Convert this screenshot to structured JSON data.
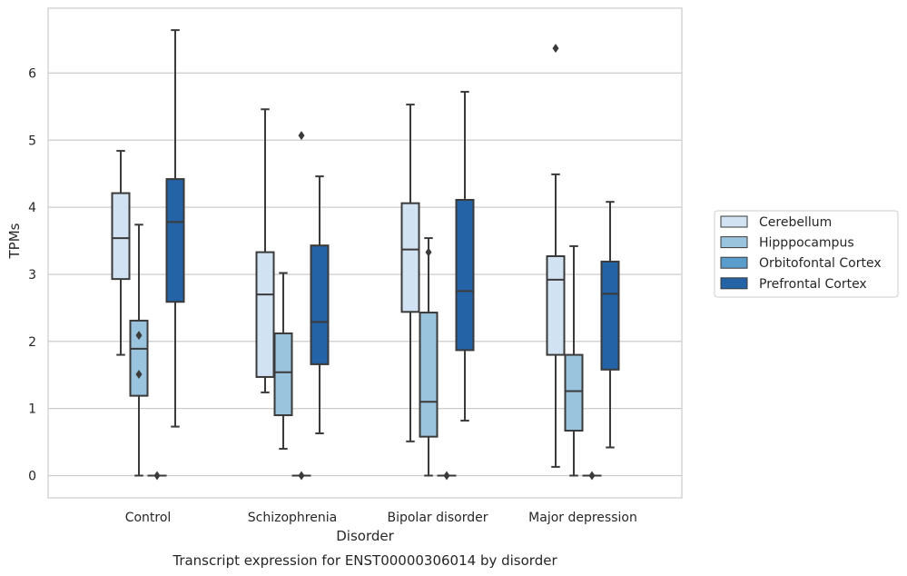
{
  "chart_data": {
    "type": "box",
    "title": "Transcript expression for ENST00000306014 by disorder",
    "xlabel": "Disorder",
    "ylabel": "TPMs",
    "ylim": [
      -0.32,
      6.99
    ],
    "yticks": [
      0,
      1,
      2,
      3,
      4,
      5,
      6
    ],
    "grid": "horizontal",
    "legend_position": "right",
    "categories": [
      "Control",
      "Schizophrenia",
      "Bipolar disorder",
      "Major depression"
    ],
    "series": [
      {
        "name": "Cerebellum",
        "color": "#d1e2f2",
        "boxes": [
          {
            "whisker_low": 1.8,
            "q1": 2.93,
            "median": 3.54,
            "q3": 4.21,
            "whisker_high": 4.84,
            "outliers": []
          },
          {
            "whisker_low": 1.24,
            "q1": 1.47,
            "median": 2.7,
            "q3": 3.33,
            "whisker_high": 5.46,
            "outliers": []
          },
          {
            "whisker_low": 0.51,
            "q1": 2.44,
            "median": 3.37,
            "q3": 4.06,
            "whisker_high": 5.53,
            "outliers": []
          },
          {
            "whisker_low": 0.13,
            "q1": 1.8,
            "median": 2.92,
            "q3": 3.27,
            "whisker_high": 4.49,
            "outliers": [
              6.37
            ]
          }
        ]
      },
      {
        "name": "Hipppocampus",
        "color": "#9ac3dd",
        "boxes": [
          {
            "whisker_low": 0.0,
            "q1": 1.19,
            "median": 1.89,
            "q3": 2.31,
            "whisker_high": 3.74,
            "outliers": [
              2.09,
              1.51
            ]
          },
          {
            "whisker_low": 0.4,
            "q1": 0.9,
            "median": 1.54,
            "q3": 2.12,
            "whisker_high": 3.02,
            "outliers": []
          },
          {
            "whisker_low": 0.0,
            "q1": 0.58,
            "median": 1.1,
            "q3": 2.43,
            "whisker_high": 3.54,
            "outliers": [
              3.33
            ]
          },
          {
            "whisker_low": 0.0,
            "q1": 0.67,
            "median": 1.26,
            "q3": 1.8,
            "whisker_high": 3.42,
            "outliers": []
          }
        ]
      },
      {
        "name": "Orbitofontal Cortex",
        "color": "#5a9ccc",
        "boxes": [
          {
            "whisker_low": 0.0,
            "q1": 0.0,
            "median": 0.0,
            "q3": 0.0,
            "whisker_high": 0.0,
            "outliers": [
              0.0
            ]
          },
          {
            "whisker_low": 0.0,
            "q1": 0.0,
            "median": 0.0,
            "q3": 0.0,
            "whisker_high": 0.0,
            "outliers": [
              0.0,
              5.07
            ]
          },
          {
            "whisker_low": 0.0,
            "q1": 0.0,
            "median": 0.0,
            "q3": 0.0,
            "whisker_high": 0.0,
            "outliers": [
              0.0
            ]
          },
          {
            "whisker_low": 0.0,
            "q1": 0.0,
            "median": 0.0,
            "q3": 0.0,
            "whisker_high": 0.0,
            "outliers": [
              0.0
            ]
          }
        ]
      },
      {
        "name": "Prefrontal Cortex",
        "color": "#2463a6",
        "boxes": [
          {
            "whisker_low": 0.73,
            "q1": 2.59,
            "median": 3.78,
            "q3": 4.42,
            "whisker_high": 6.64,
            "outliers": []
          },
          {
            "whisker_low": 0.63,
            "q1": 1.66,
            "median": 2.29,
            "q3": 3.43,
            "whisker_high": 4.46,
            "outliers": []
          },
          {
            "whisker_low": 0.82,
            "q1": 1.87,
            "median": 2.75,
            "q3": 4.11,
            "whisker_high": 5.72,
            "outliers": []
          },
          {
            "whisker_low": 0.42,
            "q1": 1.58,
            "median": 2.71,
            "q3": 3.19,
            "whisker_high": 4.08,
            "outliers": []
          }
        ]
      }
    ]
  }
}
